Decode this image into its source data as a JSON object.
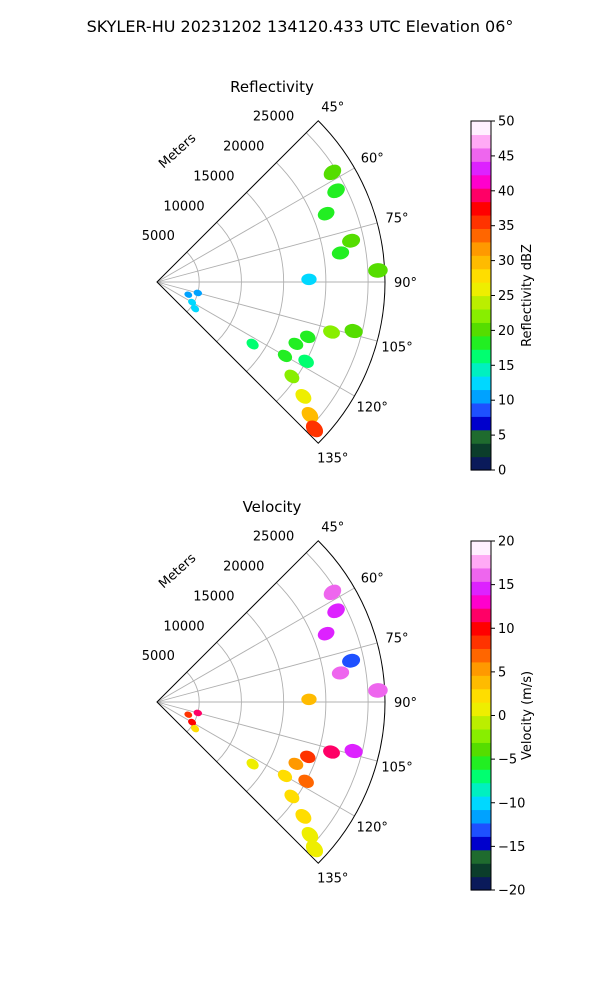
{
  "figure": {
    "title": "SKYLER-HU  20231202  134120.433 UTC Elevation 06°"
  },
  "chart_data": [
    {
      "type": "heatmap",
      "subtype": "polar-sector",
      "title": "Reflectivity",
      "radial_label": "Meters",
      "radial_ticks": [
        5000,
        10000,
        15000,
        20000,
        25000
      ],
      "radial_tick_labels": [
        "5000",
        "10000",
        "15000",
        "20000",
        "25000"
      ],
      "rmax": 27000,
      "theta_range_deg": [
        45,
        135
      ],
      "theta_ticks": [
        45,
        60,
        75,
        90,
        105,
        120,
        135
      ],
      "theta_tick_labels": [
        "45°",
        "60°",
        "75°",
        "90°",
        "105°",
        "120°",
        "135°"
      ],
      "grid": true,
      "colorbar": {
        "label": "Reflectivity dBZ",
        "min": 0,
        "max": 50,
        "ticks": [
          0,
          5,
          10,
          15,
          20,
          25,
          30,
          35,
          40,
          45,
          50
        ],
        "tick_labels": [
          "0",
          "5",
          "10",
          "15",
          "20",
          "25",
          "30",
          "35",
          "40",
          "45",
          "50"
        ],
        "colors": [
          "#0a1a5a",
          "#0b3d2b",
          "#1f6b2e",
          "#0000cc",
          "#1e50ff",
          "#00a2ff",
          "#00d8ff",
          "#00f0c0",
          "#00ff70",
          "#22ee22",
          "#55dd00",
          "#88ee00",
          "#bbee00",
          "#eeee00",
          "#ffdd00",
          "#ffbb00",
          "#ff9900",
          "#ff6600",
          "#ff3300",
          "#ff0000",
          "#ff0066",
          "#ff00cc",
          "#dd22ff",
          "#ee66ee",
          "#ffaaf5",
          "#fff0ff"
        ]
      },
      "echoes": [
        {
          "theta": 58,
          "r": 24500,
          "value": 20
        },
        {
          "theta": 63,
          "r": 23800,
          "value": 19
        },
        {
          "theta": 68,
          "r": 21600,
          "value": 18
        },
        {
          "theta": 78,
          "r": 23500,
          "value": 20
        },
        {
          "theta": 81,
          "r": 22000,
          "value": 18
        },
        {
          "theta": 87,
          "r": 26200,
          "value": 21
        },
        {
          "theta": 89,
          "r": 18000,
          "value": 12
        },
        {
          "theta": 104,
          "r": 24000,
          "value": 21
        },
        {
          "theta": 106,
          "r": 21500,
          "value": 23
        },
        {
          "theta": 110,
          "r": 19000,
          "value": 18
        },
        {
          "theta": 114,
          "r": 18000,
          "value": 19
        },
        {
          "theta": 118,
          "r": 20000,
          "value": 17
        },
        {
          "theta": 120,
          "r": 17500,
          "value": 18
        },
        {
          "theta": 123,
          "r": 13500,
          "value": 17
        },
        {
          "theta": 125,
          "r": 19500,
          "value": 22
        },
        {
          "theta": 128,
          "r": 22000,
          "value": 25
        },
        {
          "theta": 131,
          "r": 24000,
          "value": 30
        },
        {
          "theta": 133,
          "r": 25500,
          "value": 35
        },
        {
          "theta": 112,
          "r": 4000,
          "value": 11
        },
        {
          "theta": 120,
          "r": 4800,
          "value": 12
        },
        {
          "theta": 125,
          "r": 5500,
          "value": 13
        },
        {
          "theta": 105,
          "r": 5000,
          "value": 10
        }
      ]
    },
    {
      "type": "heatmap",
      "subtype": "polar-sector",
      "title": "Velocity",
      "radial_label": "Meters",
      "radial_ticks": [
        5000,
        10000,
        15000,
        20000,
        25000
      ],
      "radial_tick_labels": [
        "5000",
        "10000",
        "15000",
        "20000",
        "25000"
      ],
      "rmax": 27000,
      "theta_range_deg": [
        45,
        135
      ],
      "theta_ticks": [
        45,
        60,
        75,
        90,
        105,
        120,
        135
      ],
      "theta_tick_labels": [
        "45°",
        "60°",
        "75°",
        "90°",
        "105°",
        "120°",
        "135°"
      ],
      "grid": true,
      "colorbar": {
        "label": "Velocity (m/s)",
        "min": -20,
        "max": 20,
        "ticks": [
          -20,
          -15,
          -10,
          -5,
          0,
          5,
          10,
          15,
          20
        ],
        "tick_labels": [
          "−20",
          "−15",
          "−10",
          "−5",
          "0",
          "5",
          "10",
          "15",
          "20"
        ],
        "colors": [
          "#0a1a5a",
          "#0b3d2b",
          "#1f6b2e",
          "#0000cc",
          "#1e50ff",
          "#00a2ff",
          "#00d8ff",
          "#00f0c0",
          "#00ff70",
          "#22ee22",
          "#55dd00",
          "#88ee00",
          "#bbee00",
          "#eeee00",
          "#ffdd00",
          "#ffbb00",
          "#ff9900",
          "#ff6600",
          "#ff3300",
          "#ff0000",
          "#ff0066",
          "#ff00cc",
          "#dd22ff",
          "#ee66ee",
          "#ffaaf5",
          "#fff0ff"
        ]
      },
      "echoes": [
        {
          "theta": 58,
          "r": 24500,
          "value": 16
        },
        {
          "theta": 63,
          "r": 23800,
          "value": 15
        },
        {
          "theta": 68,
          "r": 21600,
          "value": 14
        },
        {
          "theta": 78,
          "r": 23500,
          "value": -13
        },
        {
          "theta": 81,
          "r": 22000,
          "value": 16
        },
        {
          "theta": 87,
          "r": 26200,
          "value": 16
        },
        {
          "theta": 89,
          "r": 18000,
          "value": 4
        },
        {
          "theta": 104,
          "r": 24000,
          "value": 15
        },
        {
          "theta": 106,
          "r": 21500,
          "value": 11
        },
        {
          "theta": 110,
          "r": 19000,
          "value": 8
        },
        {
          "theta": 114,
          "r": 18000,
          "value": 6
        },
        {
          "theta": 118,
          "r": 20000,
          "value": 7
        },
        {
          "theta": 120,
          "r": 17500,
          "value": 2
        },
        {
          "theta": 123,
          "r": 13500,
          "value": 1
        },
        {
          "theta": 125,
          "r": 19500,
          "value": 3
        },
        {
          "theta": 128,
          "r": 22000,
          "value": 2
        },
        {
          "theta": 131,
          "r": 24000,
          "value": 1
        },
        {
          "theta": 133,
          "r": 25500,
          "value": 0
        },
        {
          "theta": 112,
          "r": 4000,
          "value": 8
        },
        {
          "theta": 120,
          "r": 4800,
          "value": 10
        },
        {
          "theta": 125,
          "r": 5500,
          "value": 3
        },
        {
          "theta": 105,
          "r": 5000,
          "value": 12
        }
      ]
    }
  ]
}
